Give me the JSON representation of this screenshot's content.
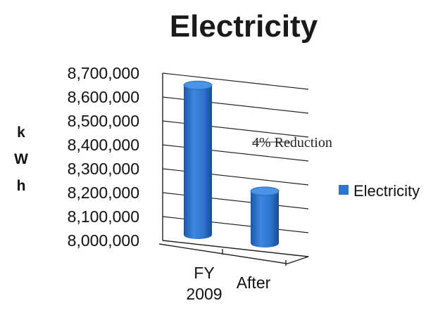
{
  "chart_data": {
    "type": "bar",
    "title": "Electricity",
    "ylabel": "kWh",
    "categories": [
      [
        "FY",
        "2009"
      ],
      [
        "After"
      ]
    ],
    "series": [
      {
        "name": "Electricity",
        "values": [
          8620000,
          8215000
        ],
        "color": "#2f73d0"
      }
    ],
    "ylim": [
      8000000,
      8700000
    ],
    "yticks": [
      8000000,
      8100000,
      8200000,
      8300000,
      8400000,
      8500000,
      8600000,
      8700000
    ],
    "ytick_labels": [
      "8,000,000",
      "8,100,000",
      "8,200,000",
      "8,300,000",
      "8,400,000",
      "8,500,000",
      "8,600,000",
      "8,700,000"
    ],
    "annotations": [
      {
        "text": "4% Reduction"
      }
    ],
    "grid": true,
    "legend_position": "right",
    "bar_style": "3d-cylinder"
  }
}
